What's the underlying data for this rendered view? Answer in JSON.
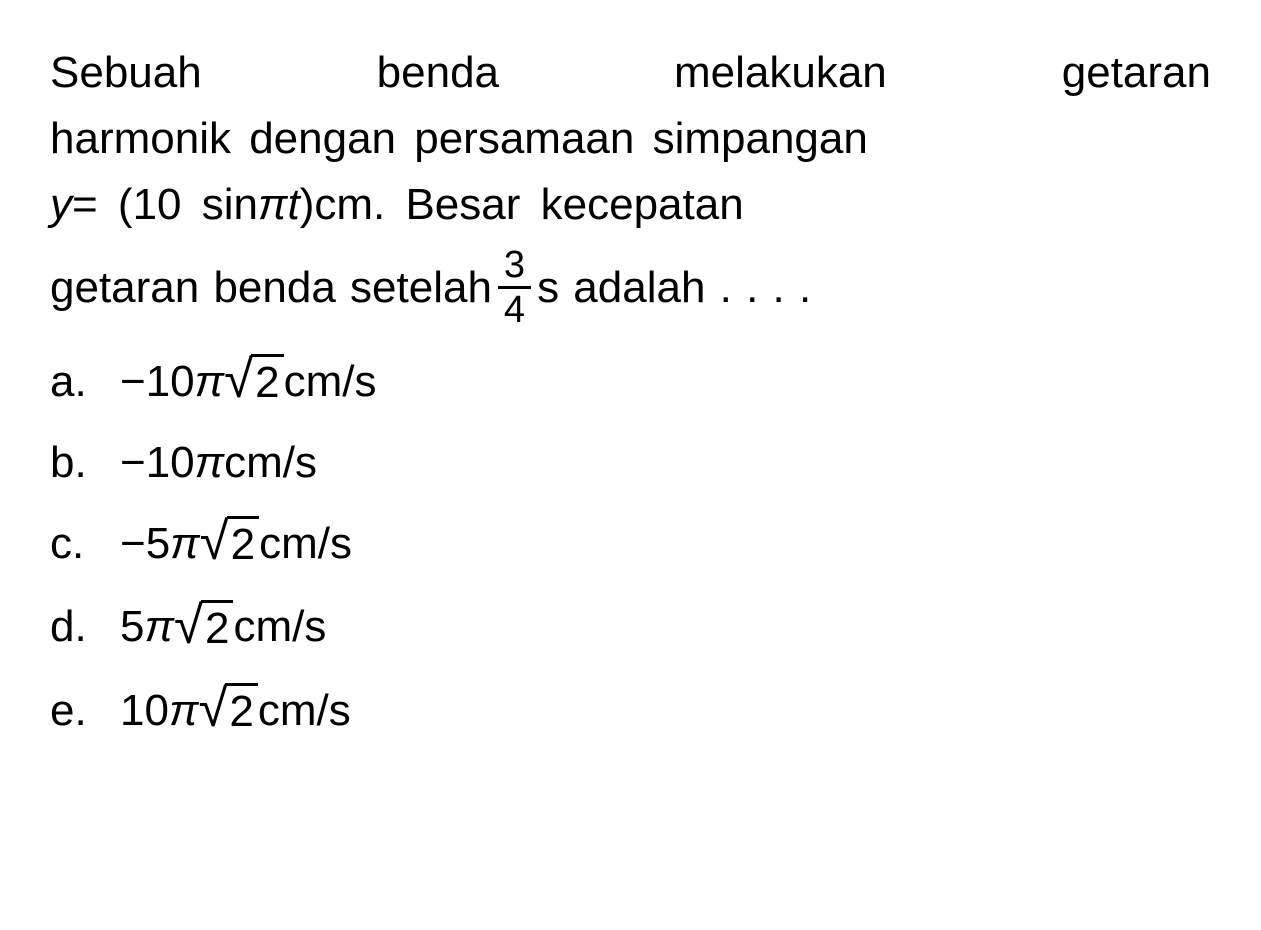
{
  "question": {
    "line1_words": [
      "Sebuah",
      "benda",
      "melakukan",
      "getaran"
    ],
    "line2": "harmonik dengan persamaan simpangan",
    "line3_prefix_var": "y",
    "line3_eq": " = (10 sin ",
    "line3_pi": "π",
    "line3_t": "t",
    "line3_paren": ")",
    "line3_middle": " cm. Besar kecepatan",
    "line4_prefix": "getaran benda setelah ",
    "fraction_num": "3",
    "fraction_den": "4",
    "line4_suffix": " s adalah . . . .",
    "font_size_pt": 44,
    "text_color": "#000000",
    "background_color": "#ffffff"
  },
  "options": [
    {
      "label": "a.",
      "prefix": "−10",
      "pi": "π",
      "has_sqrt": true,
      "sqrt_arg": "2",
      "suffix": " cm/s"
    },
    {
      "label": "b.",
      "prefix": "−10",
      "pi": "π",
      "has_sqrt": false,
      "sqrt_arg": "",
      "suffix": " cm/s"
    },
    {
      "label": "c.",
      "prefix": "−5",
      "pi": "π",
      "has_sqrt": true,
      "sqrt_arg": "2",
      "suffix": " cm/s"
    },
    {
      "label": "d.",
      "prefix": "5",
      "pi": "π",
      "has_sqrt": true,
      "sqrt_arg": "2",
      "suffix": " cm/s"
    },
    {
      "label": "e.",
      "prefix": "10",
      "pi": "π",
      "has_sqrt": true,
      "sqrt_arg": "2",
      "suffix": " cm/s"
    }
  ],
  "style": {
    "font_size": "44px",
    "option_font_size": "44px",
    "line_height": 1.45
  }
}
